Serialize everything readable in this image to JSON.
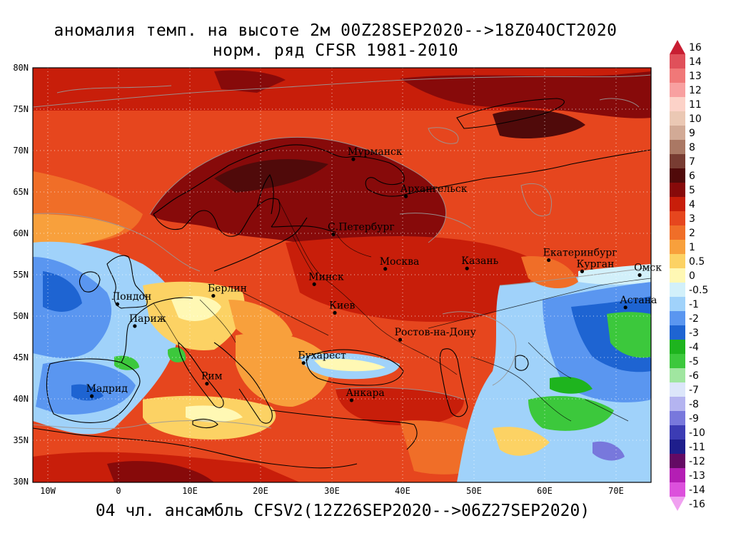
{
  "title_line1": "аномалия темп. на высоте 2м 00Z28SEP2020-->18Z04OCT2020",
  "title_line2": "норм. ряд CFSR 1981-2010",
  "footer": "04 чл. ансамбль CFSV2(12Z26SEP2020-->06Z27SEP2020)",
  "map": {
    "lon_range": [
      -12,
      75
    ],
    "lat_range": [
      30,
      80
    ],
    "lat_labels": [
      "80N",
      "75N",
      "70N",
      "65N",
      "60N",
      "55N",
      "50N",
      "45N",
      "40N",
      "35N",
      "30N"
    ],
    "lon_labels": [
      "10W",
      "0",
      "10E",
      "20E",
      "30E",
      "40E",
      "50E",
      "60E",
      "70E"
    ],
    "grid": "dotted",
    "cities": [
      {
        "name": "Мурманск",
        "lon": 33.1,
        "lat": 68.97
      },
      {
        "name": "Архангельск",
        "lon": 40.5,
        "lat": 64.5
      },
      {
        "name": "С.Петербург",
        "lon": 30.3,
        "lat": 59.9
      },
      {
        "name": "Москва",
        "lon": 37.6,
        "lat": 55.75
      },
      {
        "name": "Казань",
        "lon": 49.1,
        "lat": 55.8
      },
      {
        "name": "Екатеринбург",
        "lon": 60.6,
        "lat": 56.8
      },
      {
        "name": "Курган",
        "lon": 65.3,
        "lat": 55.45
      },
      {
        "name": "Омск",
        "lon": 73.4,
        "lat": 55.0
      },
      {
        "name": "Астана",
        "lon": 71.4,
        "lat": 51.1
      },
      {
        "name": "Минск",
        "lon": 27.6,
        "lat": 53.9
      },
      {
        "name": "Берлин",
        "lon": 13.4,
        "lat": 52.5
      },
      {
        "name": "Лондон",
        "lon": -0.1,
        "lat": 51.5
      },
      {
        "name": "Париж",
        "lon": 2.35,
        "lat": 48.85
      },
      {
        "name": "Киев",
        "lon": 30.5,
        "lat": 50.45
      },
      {
        "name": "Ростов-на-Дону",
        "lon": 39.7,
        "lat": 47.2
      },
      {
        "name": "Бухарест",
        "lon": 26.1,
        "lat": 44.4
      },
      {
        "name": "Рим",
        "lon": 12.5,
        "lat": 41.9
      },
      {
        "name": "Мадрид",
        "lon": -3.7,
        "lat": 40.4
      },
      {
        "name": "Анкара",
        "lon": 32.85,
        "lat": 39.9
      }
    ]
  },
  "colorbar": {
    "levels": [
      {
        "label": "16",
        "color": "#c81e32"
      },
      {
        "label": "14",
        "color": "#e0505a"
      },
      {
        "label": "13",
        "color": "#f07878"
      },
      {
        "label": "12",
        "color": "#f8a0a0"
      },
      {
        "label": "11",
        "color": "#fcd2c8"
      },
      {
        "label": "10",
        "color": "#ebc8b4"
      },
      {
        "label": "9",
        "color": "#d2aa96"
      },
      {
        "label": "8",
        "color": "#aa7864"
      },
      {
        "label": "7",
        "color": "#783c32"
      },
      {
        "label": "6",
        "color": "#500a0a"
      },
      {
        "label": "5",
        "color": "#870a0a"
      },
      {
        "label": "4",
        "color": "#c81e0a"
      },
      {
        "label": "3",
        "color": "#e6461e"
      },
      {
        "label": "2",
        "color": "#f06e28"
      },
      {
        "label": "1",
        "color": "#f8a03c"
      },
      {
        "label": "0.5",
        "color": "#fcd264"
      },
      {
        "label": "0",
        "color": "#fff8b4"
      },
      {
        "label": "-0.5",
        "color": "#d2f0fa"
      },
      {
        "label": "-1",
        "color": "#a0d2fa"
      },
      {
        "label": "-2",
        "color": "#5a96f0"
      },
      {
        "label": "-3",
        "color": "#1e64d2"
      },
      {
        "label": "-4",
        "color": "#1eb41e"
      },
      {
        "label": "-5",
        "color": "#3cc83c"
      },
      {
        "label": "-6",
        "color": "#a0e6a0"
      },
      {
        "label": "-7",
        "color": "#dce6fa"
      },
      {
        "label": "-8",
        "color": "#b4b4f0"
      },
      {
        "label": "-9",
        "color": "#7878dc"
      },
      {
        "label": "-10",
        "color": "#3c3cb4"
      },
      {
        "label": "-11",
        "color": "#1e1e8c"
      },
      {
        "label": "-12",
        "color": "#640a64"
      },
      {
        "label": "-13",
        "color": "#b41eb4"
      },
      {
        "label": "-14",
        "color": "#dc50dc"
      },
      {
        "label": "-16",
        "color": "#f0a0f0"
      }
    ]
  }
}
